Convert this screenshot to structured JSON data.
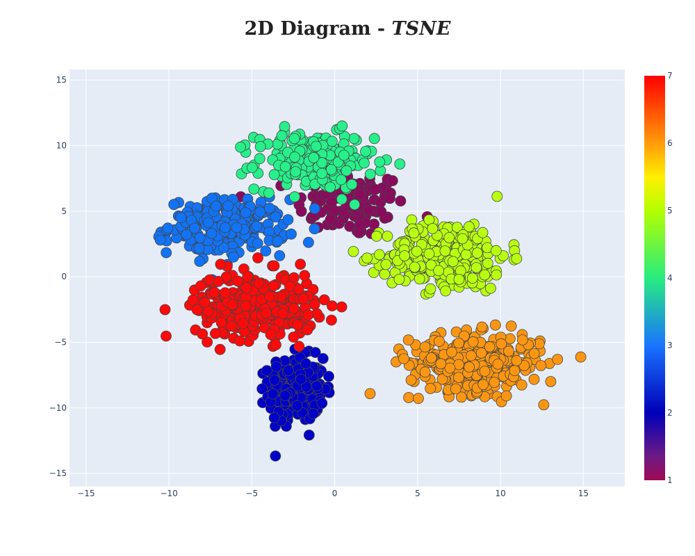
{
  "chart_data": {
    "type": "scatter",
    "title": "2D Diagram - ",
    "title_method": "TSNE",
    "xlabel": "",
    "ylabel": "",
    "xlim": [
      -16,
      17.5
    ],
    "ylim": [
      -16,
      15.8
    ],
    "x_ticks": [
      -15,
      -10,
      -5,
      0,
      5,
      10,
      15
    ],
    "y_ticks": [
      -15,
      -10,
      -5,
      0,
      5,
      10,
      15
    ],
    "x_tick_labels": [
      "−15",
      "−10",
      "−5",
      "0",
      "5",
      "10",
      "15"
    ],
    "y_tick_labels": [
      "−15",
      "−10",
      "−5",
      "0",
      "5",
      "10",
      "15"
    ],
    "grid": true,
    "plot_background": "#e5ecf6",
    "colorbar": {
      "min": 1,
      "max": 7,
      "ticks": [
        1,
        2,
        3,
        4,
        5,
        6,
        7
      ],
      "tick_labels": [
        "1",
        "2",
        "3",
        "4",
        "5",
        "6",
        "7"
      ],
      "colorscale": [
        [
          0.0,
          "#9e0a52"
        ],
        [
          0.06,
          "#6c1a86"
        ],
        [
          0.167,
          "#0000b8"
        ],
        [
          0.333,
          "#1a74ff"
        ],
        [
          0.5,
          "#27ec7f"
        ],
        [
          0.667,
          "#b4ff00"
        ],
        [
          0.75,
          "#ffef00"
        ],
        [
          0.833,
          "#ff9c0a"
        ],
        [
          1.0,
          "#ff0000"
        ]
      ]
    },
    "clusters": [
      {
        "value": 1,
        "color": "#8b0a5e",
        "center": [
          1.0,
          5.5
        ],
        "spread": [
          3.0,
          2.3
        ],
        "count": 110
      },
      {
        "value": 2,
        "color": "#0000c8",
        "center": [
          -2.3,
          -8.6
        ],
        "spread": [
          1.5,
          2.2
        ],
        "count": 280
      },
      {
        "value": 3,
        "color": "#1273f5",
        "center": [
          -6.5,
          3.8
        ],
        "spread": [
          3.2,
          1.9
        ],
        "count": 240
      },
      {
        "value": 4,
        "color": "#27f08a",
        "center": [
          -1.2,
          8.8
        ],
        "spread": [
          3.2,
          2.0
        ],
        "count": 230
      },
      {
        "value": 5,
        "color": "#b8ff12",
        "center": [
          6.8,
          1.6
        ],
        "spread": [
          3.3,
          2.4
        ],
        "count": 310
      },
      {
        "value": 6,
        "color": "#fb9612",
        "center": [
          8.5,
          -6.6
        ],
        "spread": [
          3.6,
          2.0
        ],
        "count": 330
      },
      {
        "value": 7,
        "color": "#ff0a0a",
        "center": [
          -4.8,
          -2.2
        ],
        "spread": [
          3.3,
          2.3
        ],
        "count": 300
      }
    ],
    "marker": {
      "outline": "#444444"
    }
  }
}
